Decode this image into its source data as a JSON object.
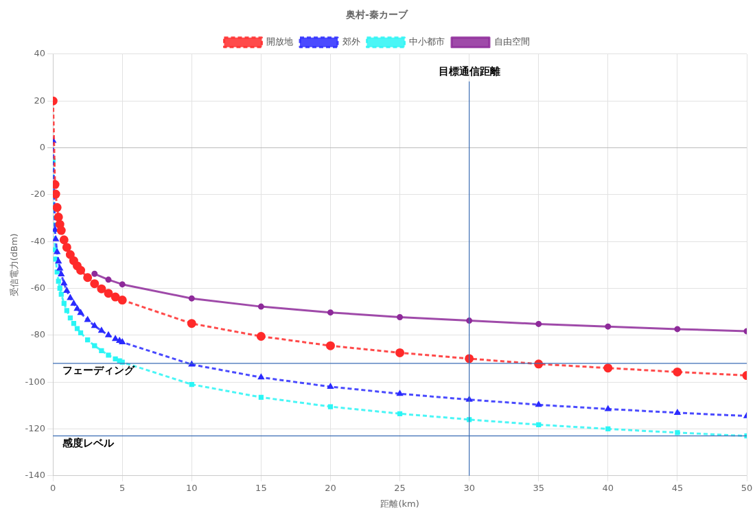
{
  "chart_data": {
    "type": "line",
    "title": "奥村-秦カーブ",
    "xlabel": "距離(km)",
    "ylabel": "受信電力(dBm)",
    "xlim": [
      0,
      50
    ],
    "xticks": [
      0,
      5,
      10,
      15,
      20,
      25,
      30,
      35,
      40,
      45,
      50
    ],
    "ylim": [
      -140,
      40
    ],
    "yticks": [
      -140,
      -120,
      -100,
      -80,
      -60,
      -40,
      -20,
      0,
      20,
      40
    ],
    "grid": true,
    "legend": "top",
    "x": [
      0.01,
      0.15,
      0.2,
      0.3,
      0.4,
      0.5,
      0.6,
      0.8,
      1,
      1.25,
      1.5,
      1.75,
      2,
      2.5,
      3,
      3.5,
      4,
      4.5,
      4.8,
      5,
      10,
      15,
      20,
      25,
      30,
      35,
      40,
      45,
      50
    ],
    "series": [
      {
        "name": "開放地",
        "color": "#ff2a2a",
        "marker": "circle",
        "line_style": "dashed",
        "values": [
          20,
          -15.7,
          -19.8,
          -25.5,
          -29.6,
          -32.7,
          -35.3,
          -39.3,
          -42.5,
          -45.6,
          -48.2,
          -50.4,
          -52.3,
          -55.4,
          -58.0,
          -60.2,
          -62.1,
          -63.7,
          null,
          -65,
          -75,
          -80.5,
          -84.5,
          -87.5,
          -90,
          -92.3,
          -94,
          -95.7,
          -97.2
        ]
      },
      {
        "name": "郊外",
        "color": "#2a2aff",
        "marker": "triangle",
        "line_style": "dashed",
        "values": [
          3,
          -35.0,
          -39.0,
          -44.5,
          -48.5,
          -51.5,
          -54.0,
          -57.9,
          -61,
          -64.1,
          -66.5,
          -68.7,
          -70.5,
          -73.5,
          -76,
          -78.1,
          -80,
          -81.6,
          -82.4,
          -83,
          -92.5,
          -98,
          -102,
          -105,
          -107.5,
          -109.7,
          -111.5,
          -113.1,
          -114.5
        ]
      },
      {
        "name": "中小都市",
        "color": "#2af5f5",
        "marker": "square",
        "line_style": "dashed",
        "values": [
          -5.5,
          -43.5,
          -47.5,
          -53,
          -57,
          -60,
          -62.5,
          -66.4,
          -69.5,
          -72.6,
          -75,
          -77.2,
          -79,
          -82,
          -84.5,
          -86.6,
          -88.5,
          -90.1,
          -90.9,
          -91.5,
          -101,
          -106.5,
          -110.5,
          -113.5,
          -116,
          -118.2,
          -120,
          -121.6,
          -123
        ]
      },
      {
        "name": "自由空間",
        "color": "#8e2a9a",
        "marker": "circle",
        "line_style": "solid",
        "x": [
          3,
          4,
          5,
          10,
          15,
          20,
          25,
          30,
          35,
          40,
          45,
          50
        ],
        "values": [
          -53.8,
          -56.3,
          -58.3,
          -64.3,
          -67.8,
          -70.3,
          -72.3,
          -73.8,
          -75.2,
          -76.3,
          -77.4,
          -78.3
        ]
      }
    ],
    "ref_lines": [
      {
        "axis": "x",
        "value": 30,
        "label": "目標通信距離",
        "color": "#3b6db5"
      },
      {
        "axis": "y",
        "value": -92,
        "label": "フェーディング",
        "color": "#3b6db5"
      },
      {
        "axis": "y",
        "value": -123,
        "label": "感度レベル",
        "color": "#3b6db5"
      }
    ]
  }
}
